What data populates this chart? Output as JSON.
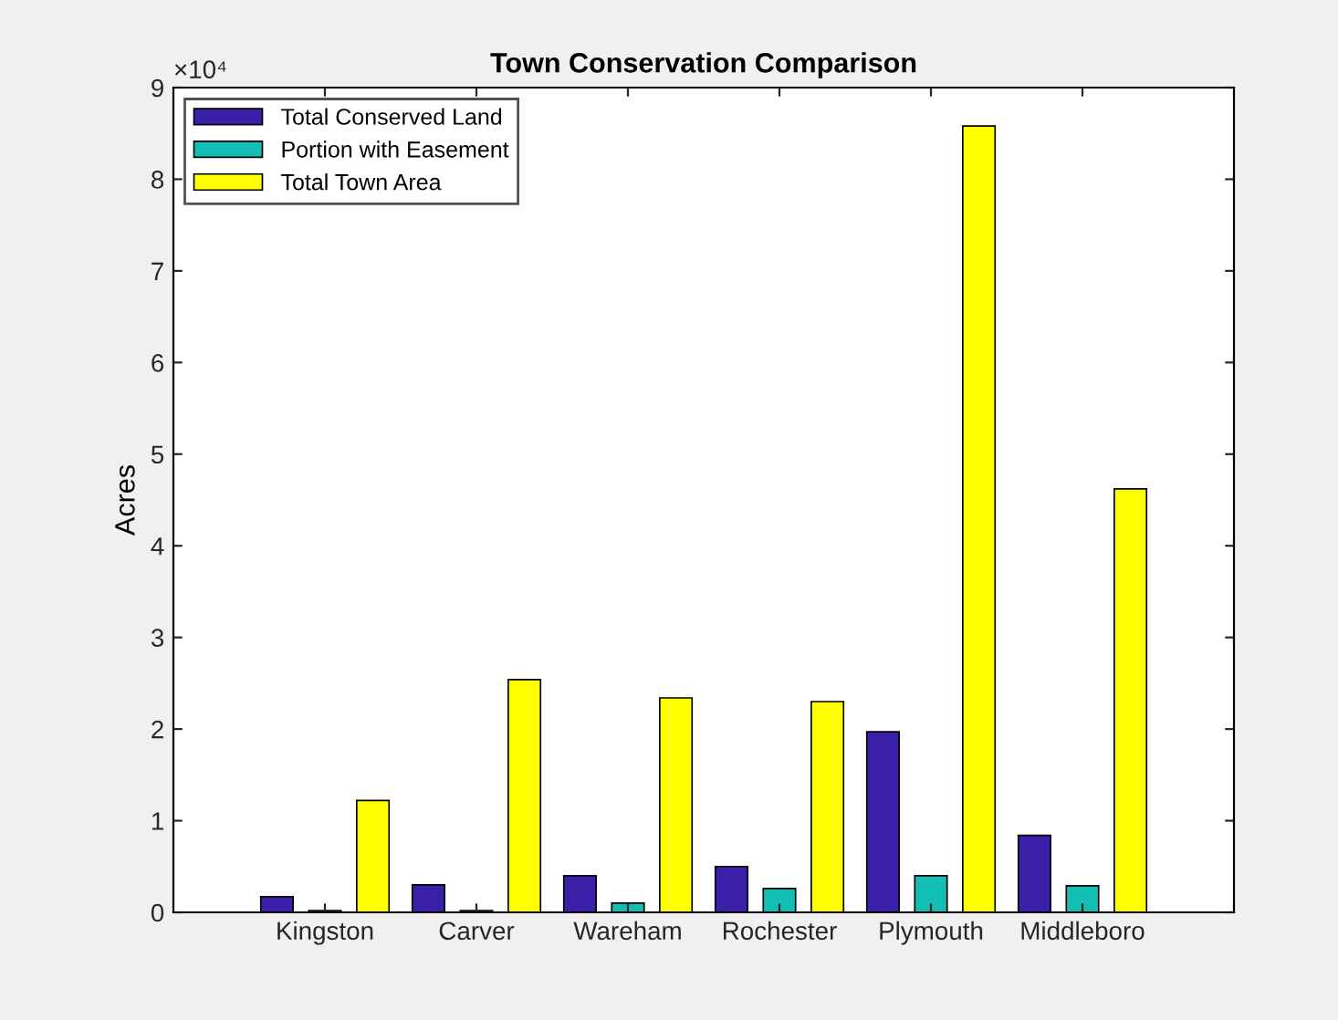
{
  "chart_data": {
    "type": "bar",
    "title": "Town Conservation Comparison",
    "ylabel": "Acres",
    "categories": [
      "Kingston",
      "Carver",
      "Wareham",
      "Rochester",
      "Plymouth",
      "Middleboro"
    ],
    "series": [
      {
        "name": "Total Conserved Land",
        "color": "#3b1fa8",
        "values": [
          0.17,
          0.3,
          0.4,
          0.5,
          1.97,
          0.84
        ]
      },
      {
        "name": "Portion with Easement",
        "color": "#13bfb5",
        "values": [
          0.02,
          0.02,
          0.1,
          0.26,
          0.4,
          0.29
        ]
      },
      {
        "name": "Total Town Area",
        "color": "#ffff00",
        "values": [
          1.22,
          2.54,
          2.34,
          2.3,
          8.58,
          4.62
        ]
      }
    ],
    "ylim": [
      0,
      9
    ],
    "yticks": [
      0,
      1,
      2,
      3,
      4,
      5,
      6,
      7,
      8,
      9
    ],
    "annotations": [
      "×10⁴"
    ],
    "grid": false,
    "legend": "top left"
  }
}
